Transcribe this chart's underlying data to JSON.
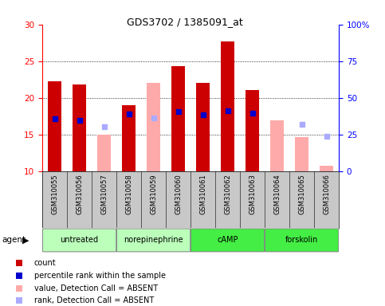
{
  "title": "GDS3702 / 1385091_at",
  "samples": [
    "GSM310055",
    "GSM310056",
    "GSM310057",
    "GSM310058",
    "GSM310059",
    "GSM310060",
    "GSM310061",
    "GSM310062",
    "GSM310063",
    "GSM310064",
    "GSM310065",
    "GSM310066"
  ],
  "bar_bottom": 10,
  "count_values": [
    22.3,
    21.8,
    null,
    19.0,
    null,
    24.3,
    22.0,
    27.7,
    21.1,
    null,
    null,
    null
  ],
  "absent_value_tops": [
    null,
    null,
    15.0,
    null,
    22.0,
    null,
    null,
    null,
    null,
    17.0,
    14.7,
    10.8
  ],
  "percentile_rank": [
    17.2,
    17.0,
    null,
    17.8,
    null,
    18.1,
    17.7,
    18.3,
    17.9,
    null,
    null,
    null
  ],
  "absent_rank": [
    null,
    null,
    16.1,
    null,
    17.3,
    null,
    null,
    null,
    null,
    null,
    16.4,
    14.8
  ],
  "ylim": [
    10,
    30
  ],
  "yticks_left": [
    10,
    15,
    20,
    25,
    30
  ],
  "yticks_right": [
    0,
    25,
    50,
    75,
    100
  ],
  "yright_labels": [
    "0",
    "25",
    "50",
    "75",
    "100%"
  ],
  "color_count": "#cc0000",
  "color_percentile": "#0000cc",
  "color_absent_value": "#ffaaaa",
  "color_absent_rank": "#aaaaff",
  "bar_width": 0.55,
  "sample_bg": "#c8c8c8",
  "group_defs": [
    {
      "start": 0,
      "end": 2,
      "label": "untreated",
      "color": "#bbffbb"
    },
    {
      "start": 3,
      "end": 5,
      "label": "norepinephrine",
      "color": "#bbffbb"
    },
    {
      "start": 6,
      "end": 8,
      "label": "cAMP",
      "color": "#44ee44"
    },
    {
      "start": 9,
      "end": 11,
      "label": "forskolin",
      "color": "#44ee44"
    }
  ]
}
